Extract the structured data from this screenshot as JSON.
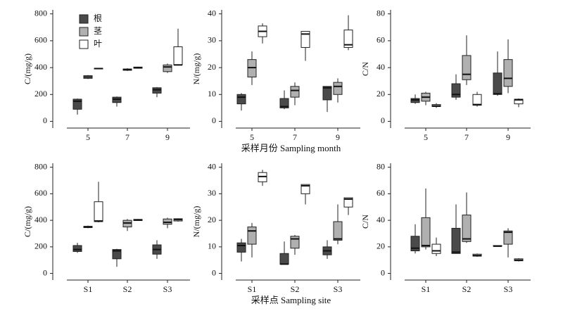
{
  "chart_data": [
    {
      "type": "box",
      "ylabel": "C/(mg/g)",
      "categories": [
        "5",
        "7",
        "9"
      ],
      "ylim": [
        -50,
        830
      ],
      "yticks": [
        0,
        200,
        400,
        600,
        800
      ],
      "legend": "upper left",
      "series": [
        {
          "name": "根",
          "color": "#4a4a4a",
          "min": [
            50,
            110,
            180
          ],
          "q1": [
            90,
            140,
            210
          ],
          "median": [
            150,
            165,
            235
          ],
          "q3": [
            165,
            180,
            250
          ],
          "max": [
            170,
            185,
            255
          ]
        },
        {
          "name": "茎",
          "color": "#b0b0b0",
          "min": [
            315,
            375,
            360
          ],
          "q1": [
            320,
            380,
            370
          ],
          "median": [
            330,
            385,
            405
          ],
          "q3": [
            340,
            390,
            420
          ],
          "max": [
            345,
            395,
            430
          ]
        },
        {
          "name": "叶",
          "color": "#ffffff",
          "min": [
            388,
            392,
            415
          ],
          "q1": [
            390,
            395,
            420
          ],
          "median": [
            393,
            400,
            420
          ],
          "q3": [
            395,
            404,
            555
          ],
          "max": [
            397,
            407,
            690
          ]
        }
      ]
    },
    {
      "type": "box",
      "ylabel": "N/(mg/g)",
      "xlabel": "采样月份 Sampling month",
      "categories": [
        "5",
        "7",
        "9"
      ],
      "ylim": [
        -2.5,
        41.5
      ],
      "yticks": [
        0,
        10,
        20,
        30,
        40
      ],
      "series": [
        {
          "color": "#4a4a4a",
          "min": [
            4,
            4.5,
            3.5
          ],
          "q1": [
            6.5,
            5,
            8
          ],
          "median": [
            9,
            5.5,
            12.5
          ],
          "q3": [
            10,
            8.5,
            13
          ],
          "max": [
            10.5,
            11.5,
            13
          ]
        },
        {
          "color": "#b0b0b0",
          "min": [
            13.5,
            6,
            7
          ],
          "q1": [
            16.5,
            9,
            10
          ],
          "median": [
            20,
            11.5,
            13
          ],
          "q3": [
            23,
            13,
            14.5
          ],
          "max": [
            26,
            14.5,
            16
          ]
        },
        {
          "color": "#ffffff",
          "min": [
            29,
            22.5,
            26.5
          ],
          "q1": [
            31.5,
            27.5,
            27.5
          ],
          "median": [
            33.5,
            32.5,
            28.5
          ],
          "q3": [
            35.5,
            33.5,
            34
          ],
          "max": [
            36.5,
            33.5,
            39.5
          ]
        }
      ]
    },
    {
      "type": "box",
      "ylabel": "C/N",
      "categories": [
        "5",
        "7",
        "9"
      ],
      "ylim": [
        -5,
        83
      ],
      "yticks": [
        0,
        20,
        40,
        60,
        80
      ],
      "series": [
        {
          "color": "#4a4a4a",
          "min": [
            13,
            16,
            19
          ],
          "q1": [
            14,
            18,
            20
          ],
          "median": [
            16,
            20,
            20.5
          ],
          "q3": [
            17,
            28,
            36
          ],
          "max": [
            20,
            35,
            52
          ]
        },
        {
          "color": "#b0b0b0",
          "min": [
            12,
            27,
            21
          ],
          "q1": [
            15,
            31,
            26
          ],
          "median": [
            18,
            35,
            32
          ],
          "q3": [
            21,
            49,
            46
          ],
          "max": [
            22,
            64,
            61
          ]
        },
        {
          "color": "#ffffff",
          "min": [
            10,
            11,
            10.5
          ],
          "q1": [
            11,
            12,
            13
          ],
          "median": [
            11.5,
            12.5,
            16
          ],
          "q3": [
            12.5,
            20,
            16.5
          ],
          "max": [
            13.5,
            22,
            17
          ]
        }
      ]
    },
    {
      "type": "box",
      "ylabel": "C/(mg/g)",
      "categories": [
        "S1",
        "S2",
        "S3"
      ],
      "ylim": [
        -50,
        830
      ],
      "yticks": [
        0,
        200,
        400,
        600,
        800
      ],
      "series": [
        {
          "color": "#4a4a4a",
          "min": [
            155,
            50,
            110
          ],
          "q1": [
            165,
            110,
            145
          ],
          "median": [
            180,
            170,
            180
          ],
          "q3": [
            210,
            180,
            215
          ],
          "max": [
            230,
            185,
            250
          ]
        },
        {
          "color": "#b0b0b0",
          "min": [
            340,
            320,
            340
          ],
          "q1": [
            345,
            350,
            370
          ],
          "median": [
            350,
            380,
            385
          ],
          "q3": [
            355,
            400,
            410
          ],
          "max": [
            360,
            410,
            420
          ]
        },
        {
          "color": "#ffffff",
          "min": [
            385,
            395,
            390
          ],
          "q1": [
            390,
            398,
            395
          ],
          "median": [
            395,
            403,
            405
          ],
          "q3": [
            540,
            407,
            412
          ],
          "max": [
            690,
            410,
            415
          ]
        }
      ]
    },
    {
      "type": "box",
      "ylabel": "N/(mg/g)",
      "xlabel": "采样点 Sampling site",
      "categories": [
        "S1",
        "S2",
        "S3"
      ],
      "ylim": [
        -2.5,
        41.5
      ],
      "yticks": [
        0,
        10,
        20,
        30,
        40
      ],
      "series": [
        {
          "color": "#4a4a4a",
          "min": [
            4.5,
            3.5,
            5.5
          ],
          "q1": [
            8,
            3.5,
            7
          ],
          "median": [
            10.5,
            3.5,
            8.5
          ],
          "q3": [
            11.5,
            7.5,
            10
          ],
          "max": [
            13,
            12,
            12.5
          ]
        },
        {
          "color": "#b0b0b0",
          "min": [
            6,
            7,
            11
          ],
          "q1": [
            11,
            9.5,
            12.5
          ],
          "median": [
            16,
            13,
            13
          ],
          "q3": [
            17.5,
            14,
            19.5
          ],
          "max": [
            19,
            14.5,
            26
          ]
        },
        {
          "color": "#ffffff",
          "min": [
            33,
            26,
            22
          ],
          "q1": [
            34.5,
            30,
            25
          ],
          "median": [
            36.5,
            33,
            28
          ],
          "q3": [
            38,
            33.5,
            28.5
          ],
          "max": [
            39,
            33.5,
            28.5
          ]
        }
      ]
    },
    {
      "type": "box",
      "ylabel": "C/N",
      "categories": [
        "S1",
        "S2",
        "S3"
      ],
      "ylim": [
        -5,
        83
      ],
      "yticks": [
        0,
        20,
        40,
        60,
        80
      ],
      "series": [
        {
          "color": "#4a4a4a",
          "min": [
            15,
            15,
            20.5
          ],
          "q1": [
            17,
            15,
            20.5
          ],
          "median": [
            19,
            16,
            20.5
          ],
          "q3": [
            28,
            34,
            21
          ],
          "max": [
            37,
            52,
            21
          ]
        },
        {
          "color": "#b0b0b0",
          "min": [
            18,
            23,
            12
          ],
          "q1": [
            20,
            24,
            22
          ],
          "median": [
            21,
            26,
            31
          ],
          "q3": [
            42,
            44,
            32
          ],
          "max": [
            64,
            61,
            34
          ]
        },
        {
          "color": "#ffffff",
          "min": [
            13,
            12.5,
            9
          ],
          "q1": [
            15,
            13,
            9.5
          ],
          "median": [
            17,
            13.5,
            10
          ],
          "q3": [
            22,
            14.5,
            11
          ],
          "max": [
            27,
            15,
            11.5
          ]
        }
      ]
    }
  ]
}
